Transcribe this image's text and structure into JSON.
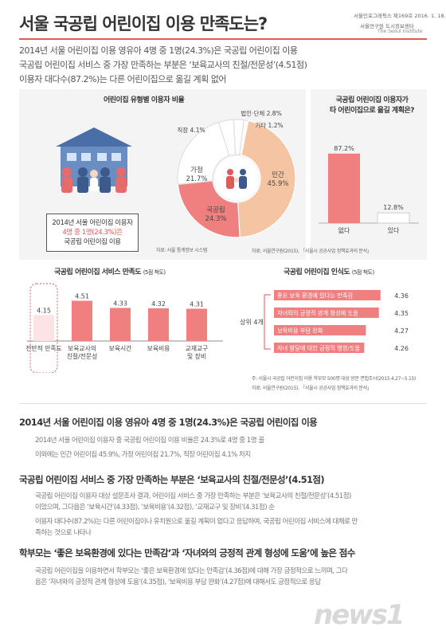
{
  "header": {
    "title": "서울 국공립 어린이집 이용 만족도는?",
    "publication": "서울인포그래픽스 제169호 2016. 1. 18.",
    "institute_kr": "서울연구원 도시정보센터",
    "institute_en": "The Seoul Institute"
  },
  "summary": [
    "2014년 서울 어린이집 이용 영유아 4명 중 1명(24.3%)은 국공립 어린이집 이용",
    "국공립 어린이집 서비스 중 가장 만족하는 부분은 ‘보육교사의 친절/전문성’(4.51점)",
    "이용자 대다수(87.2%)는 다른 어린이집으로 옮길 계획 없어"
  ],
  "pie_section": {
    "title": "어린이집 유형별 이용자 비율",
    "callout_line1": "2014년 서울 어린이집 이용자",
    "callout_line2": "4명 중 1명(24.3%)은",
    "callout_line3": "국공립 어린이집 이용",
    "source": "자료: 서울 통계정보 시스템"
  },
  "move_section": {
    "title_line1": "국공립 어린이집 이용자가",
    "title_line2": "타 어린이집으로 옮길 계획은?",
    "source": "자료: 서울연구원(2015), 「서울시 공공사업 정책효과의 분석」"
  },
  "satisfaction_section": {
    "title": "국공립 어린이집 서비스 만족도",
    "scale": "(5점 척도)"
  },
  "perception_section": {
    "title": "국공립 어린이집 인식도",
    "scale": "(5점 척도)",
    "group_label": "상위 4개",
    "note": "주: 서울시 국공립 어린이집 이용 학부모 500명 대상 방문 면접조사(2015.4.27~5.15)",
    "source": "자료: 서울연구원(2015), 「서울시 공공사업 정책효과의 분석」"
  },
  "findings": [
    {
      "heading": "2014년 서울 어린이집 이용 영유아 4명 중 1명(24.3%)은 국공립 어린이집 이용",
      "lines": [
        "2014년 서울 어린이집 이용자 중 국공립 어린이집 이용 비율은 24.3%로 4명 중 1명 꼴",
        "이외에는 민간 어린이집 45.9%, 가정 어린이집 21.7%, 직장 어린이집 4.1% 차지"
      ]
    },
    {
      "heading": "국공립 어린이집 서비스 중 가장 만족하는 부분은 ‘보육교사의 친절/전문성’(4.51점)",
      "lines": [
        "국공립 어린이집 이용자 대상 설문조사 결과, 어린이집 서비스 중 가장 만족하는 부분은 ‘보육교사의 친절/전문성’(4.51점)",
        "이었으며, 그다음은 ‘보육시간’(4.33점), ‘보육비용’(4.32점), ‘교재교구 및 장비’(4.31점) 순",
        "이용자 대다수(87.2%)는 다른 어린이집이나 유치원으로 옮길 계획이 없다고 응답하여, 국공립 어린이집 서비스에 대체로 만",
        "족하는 것으로 나타나"
      ]
    },
    {
      "heading": "학부모는 ‘좋은 보육환경에 있다는 만족감’과 ‘자녀와의 긍정적 관계 형성에 도움’에 높은 점수",
      "lines": [
        "국공립 어린이집을 이용하면서 학부모는 ‘좋은 보육환경에 있다는 만족감’(4.36점)에 대해 가장 긍정적으로 느끼며, 그다",
        "음은 ‘자녀와의 긍정적 관계 형성에 도움’(4.35점), ‘보육비용 부담 완화’(4.27점)에 대해서도 긍정적으로 응답"
      ]
    }
  ],
  "logo_text": "news1",
  "colors": {
    "accent": "#e05a5a",
    "pink": "#f08080",
    "peach": "#f5c5a3",
    "grey": "#bdbdbd",
    "dark": "#333333"
  },
  "chart_data": [
    {
      "type": "pie",
      "title": "어린이집 유형별 이용자 비율",
      "categories": [
        "민간",
        "국공립",
        "가정",
        "직장",
        "법인·단체",
        "기타"
      ],
      "values": [
        45.9,
        24.3,
        21.7,
        4.1,
        2.8,
        1.2
      ],
      "labels": [
        "민간\n45.9%",
        "국공립\n24.3%",
        "가정\n21.7%",
        "직장 4.1%",
        "법인·단체 2.8%",
        "기타 1.2%"
      ]
    },
    {
      "type": "bar",
      "title": "국공립 어린이집 이용자가 타 어린이집으로 옮길 계획은?",
      "categories": [
        "없다",
        "있다"
      ],
      "values": [
        87.2,
        12.8
      ],
      "value_labels": [
        "87.2%",
        "12.8%"
      ],
      "ylim": [
        0,
        100
      ]
    },
    {
      "type": "bar",
      "title": "국공립 어린이집 서비스 만족도",
      "categories": [
        "전반적 만족도",
        "보육교사의 친절/전문성",
        "보육시간",
        "보육비용",
        "교재교구 및 장비"
      ],
      "category_lines": [
        [
          "전반적 만족도"
        ],
        [
          "보육교사의",
          "친절/전문성"
        ],
        [
          "보육시간"
        ],
        [
          "보육비용"
        ],
        [
          "교재교구",
          "및 장비"
        ]
      ],
      "values": [
        4.15,
        4.51,
        4.33,
        4.32,
        4.31
      ],
      "value_labels": [
        "4.15",
        "4.51",
        "4.33",
        "4.32",
        "4.31"
      ]
    },
    {
      "type": "bar",
      "orientation": "horizontal",
      "title": "국공립 어린이집 인식도",
      "categories": [
        "좋은 보육 환경에 있다는 만족감",
        "자녀와의 긍정적 관계 형성에 도움",
        "보육비용 부담 완화",
        "자녀 발달에 대한 긍정적 영향/도움"
      ],
      "values": [
        4.36,
        4.35,
        4.27,
        4.26
      ],
      "value_labels": [
        "4.36",
        "4.35",
        "4.27",
        "4.26"
      ]
    }
  ]
}
